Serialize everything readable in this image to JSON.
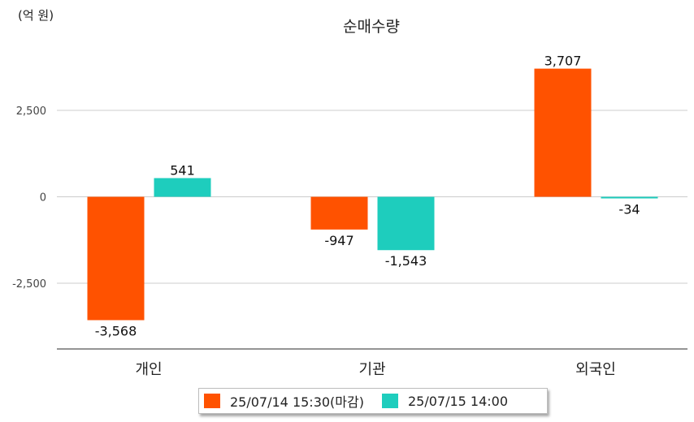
{
  "unit_label": "(억 원)",
  "chart_data": {
    "type": "bar",
    "title": "순매수량",
    "xlabel": "",
    "ylabel": "",
    "categories": [
      "개인",
      "기관",
      "외국인"
    ],
    "series": [
      {
        "name": "25/07/14 15:30(마감)",
        "color": "#ff5200",
        "values": [
          -3568,
          -947,
          3707
        ],
        "labels": [
          "-3,568",
          "-947",
          "3,707"
        ]
      },
      {
        "name": "25/07/15 14:00",
        "color": "#1ecdbd",
        "values": [
          541,
          -1543,
          -34
        ],
        "labels": [
          "541",
          "-1,543",
          "-34"
        ]
      }
    ],
    "yticks": [
      2500,
      0,
      -2500
    ],
    "ytick_labels": [
      "2,500",
      "0",
      "-2,500"
    ],
    "ylim": [
      -4450,
      4550
    ],
    "grid": true,
    "legend_position": "bottom"
  }
}
